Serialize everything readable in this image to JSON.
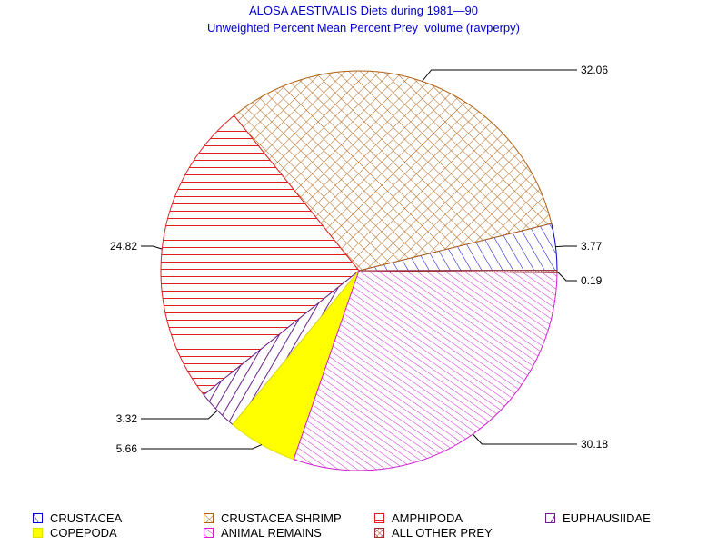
{
  "chart_data": {
    "type": "pie",
    "title": "ALOSA AESTIVALIS Diets during 1981—90",
    "subtitle": "Unweighted Percent Mean Percent Prey  volume (ravperpy)",
    "slices": [
      {
        "name": "CRUSTACEA",
        "value": 3.77,
        "label": "3.77",
        "color": "#0000cc",
        "pattern": "diag"
      },
      {
        "name": "CRUSTACEA SHRIMP",
        "value": 32.06,
        "label": "32.06",
        "color": "#b06010",
        "pattern": "cross"
      },
      {
        "name": "AMPHIPODA",
        "value": 24.82,
        "label": "24.82",
        "color": "#e02020",
        "pattern": "horiz"
      },
      {
        "name": "EUPHAUSIIDAE",
        "value": 3.32,
        "label": "3.32",
        "color": "#6a1f8a",
        "pattern": "vert"
      },
      {
        "name": "COPEPODA",
        "value": 5.66,
        "label": "5.66",
        "color": "#ffff00",
        "pattern": "solid"
      },
      {
        "name": "ANIMAL REMAINS",
        "value": 30.18,
        "label": "30.18",
        "color": "#d020d0",
        "pattern": "diagdense"
      },
      {
        "name": "ALL OTHER PREY",
        "value": 0.19,
        "label": "0.19",
        "color": "#a03030",
        "pattern": "xbox"
      }
    ]
  }
}
